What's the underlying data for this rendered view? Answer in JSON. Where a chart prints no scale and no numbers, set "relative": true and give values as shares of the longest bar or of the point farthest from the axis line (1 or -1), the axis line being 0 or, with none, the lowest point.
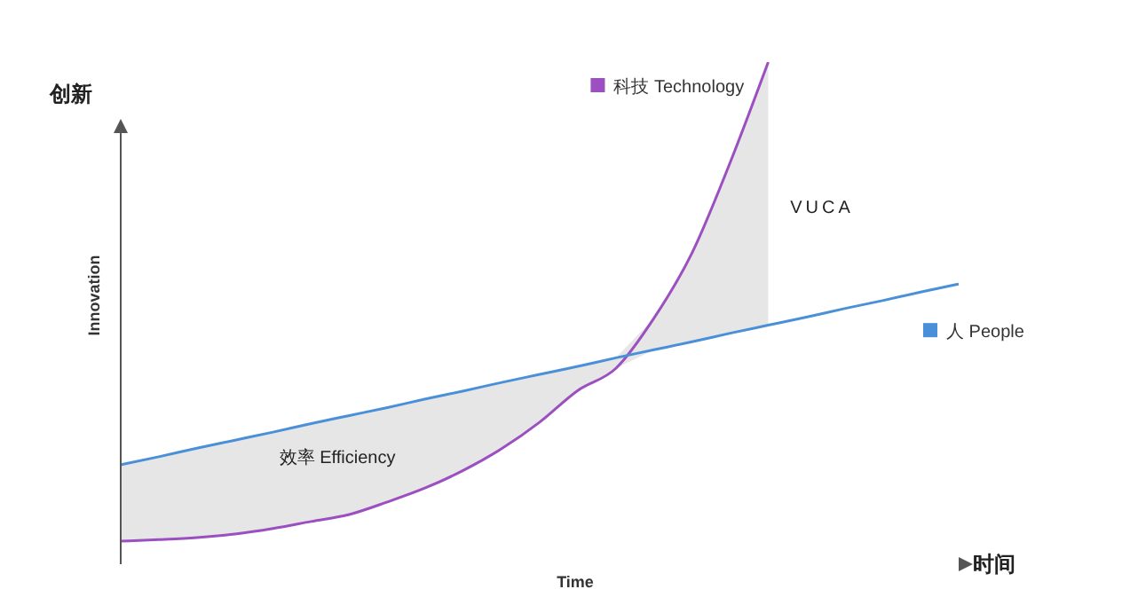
{
  "chart_data": {
    "type": "line",
    "relative": true,
    "legend": "right",
    "xlabel": "Time",
    "ylabel": "Innovation",
    "categories": [
      null,
      null,
      null,
      null,
      null,
      null,
      null,
      null,
      null,
      null,
      null,
      null,
      null,
      null,
      null,
      null,
      null,
      null,
      null,
      null,
      null,
      null,
      null
    ],
    "series": [
      {
        "name": "科技 Technology",
        "color": "#9b4fc0",
        "values": [
          0.046,
          0.049,
          0.053,
          0.06,
          0.071,
          0.085,
          0.099,
          0.124,
          0.152,
          0.187,
          0.23,
          0.283,
          0.346,
          0.39,
          0.49,
          0.62,
          0.8,
          1.0,
          null,
          null,
          null,
          null,
          null
        ]
      },
      {
        "name": "人 People",
        "color": "#4a90d9",
        "values": [
          0.198,
          0.214,
          0.231,
          0.247,
          0.263,
          0.28,
          0.296,
          0.312,
          0.329,
          0.345,
          0.362,
          0.378,
          0.394,
          0.411,
          0.427,
          0.443,
          0.46,
          0.476,
          0.492,
          0.509,
          0.525,
          0.542,
          0.558
        ]
      }
    ],
    "annotations": [
      "创新",
      "时间",
      "VUCA",
      "效率 Efficiency"
    ]
  }
}
